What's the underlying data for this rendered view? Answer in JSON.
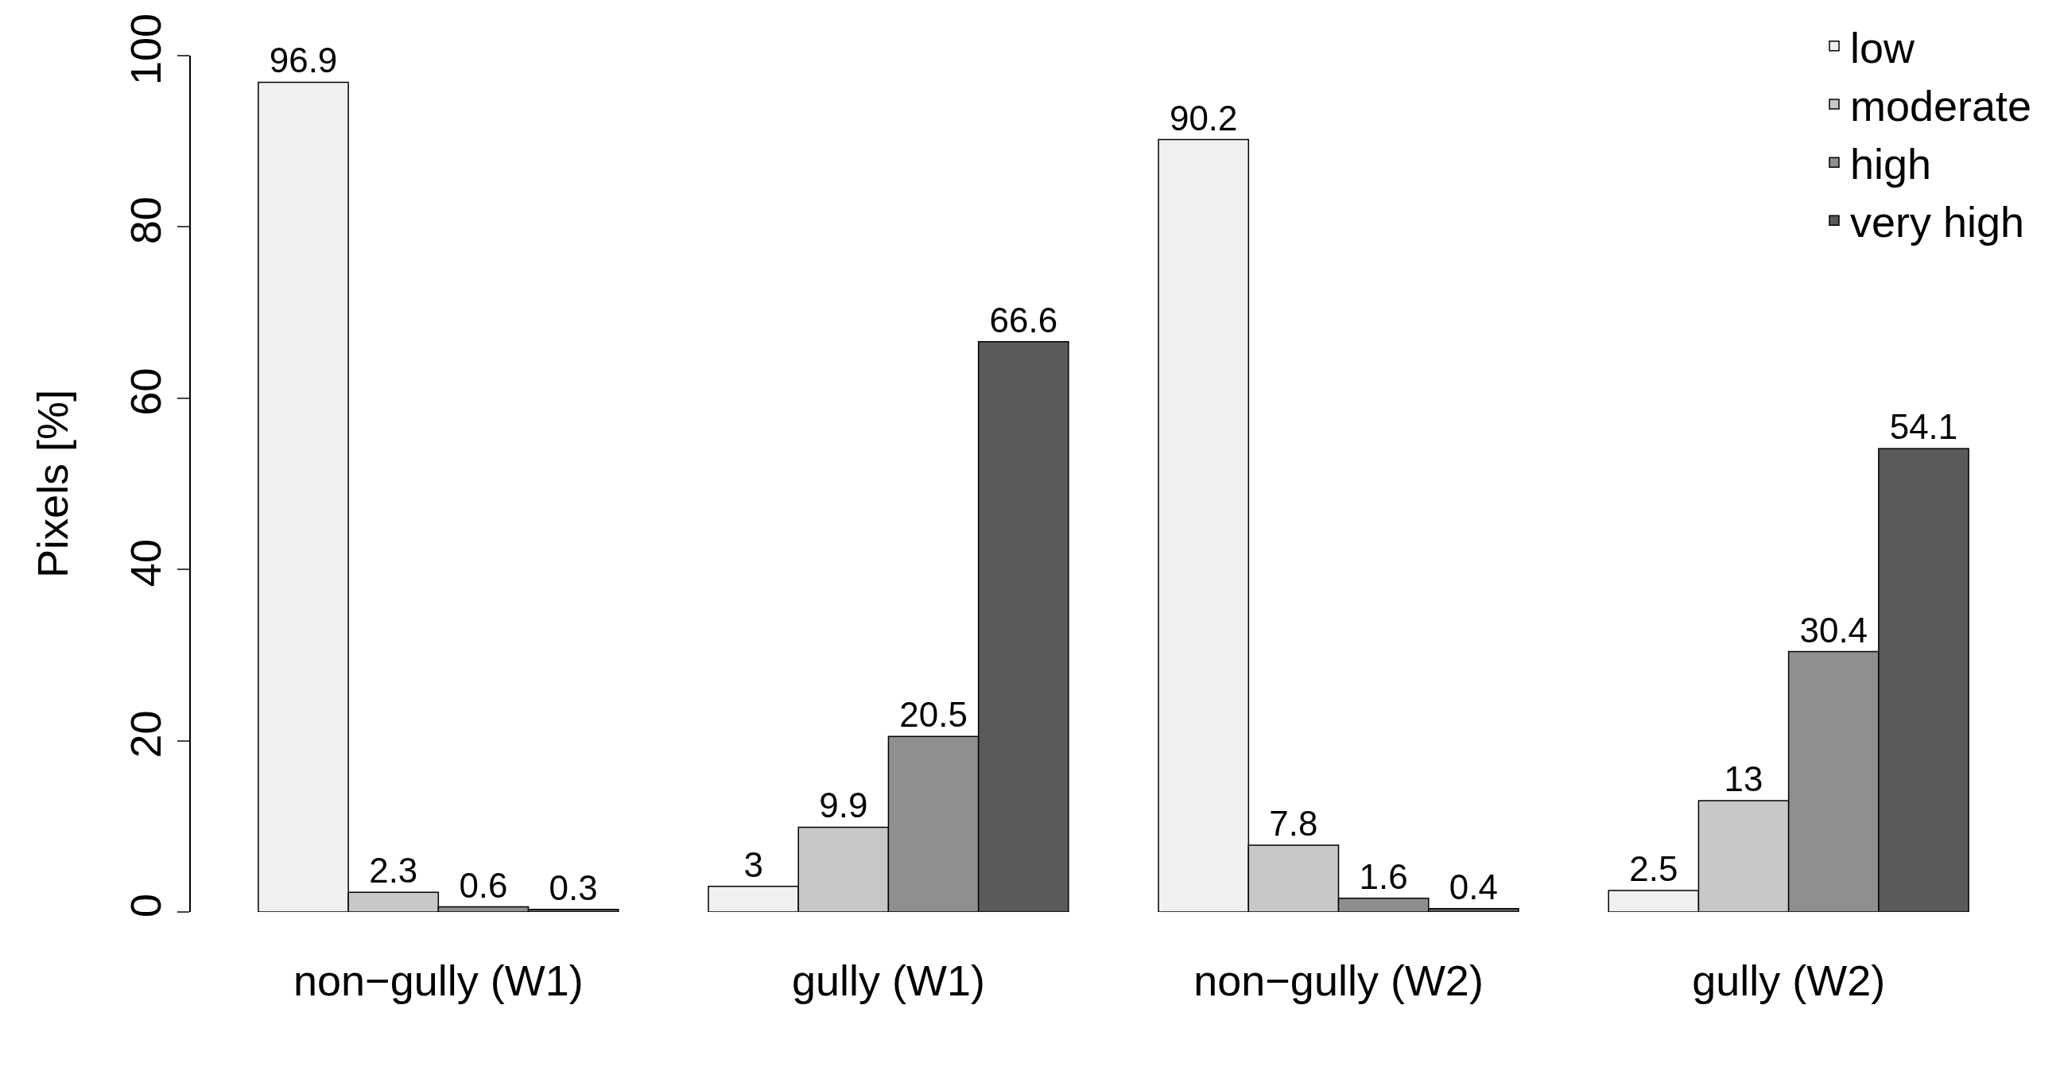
{
  "chart_data": {
    "type": "bar",
    "ylabel": "Pixels [%]",
    "categories": [
      "non−gully (W1)",
      "gully (W1)",
      "non−gully (W2)",
      "gully (W2)"
    ],
    "series": [
      {
        "name": "low",
        "color": "#f0f0f0",
        "values": [
          96.9,
          3,
          90.2,
          2.5
        ]
      },
      {
        "name": "moderate",
        "color": "#c8c8c8",
        "values": [
          2.3,
          9.9,
          7.8,
          13
        ]
      },
      {
        "name": "high",
        "color": "#8f8f8f",
        "values": [
          0.6,
          20.5,
          1.6,
          30.4
        ]
      },
      {
        "name": "very high",
        "color": "#5a5a5a",
        "values": [
          0.3,
          66.6,
          0.4,
          54.1
        ]
      }
    ],
    "ylim": [
      0,
      100
    ],
    "yticks": [
      0,
      20,
      40,
      60,
      80,
      100
    ],
    "legend": "top right",
    "data_labels": true
  }
}
